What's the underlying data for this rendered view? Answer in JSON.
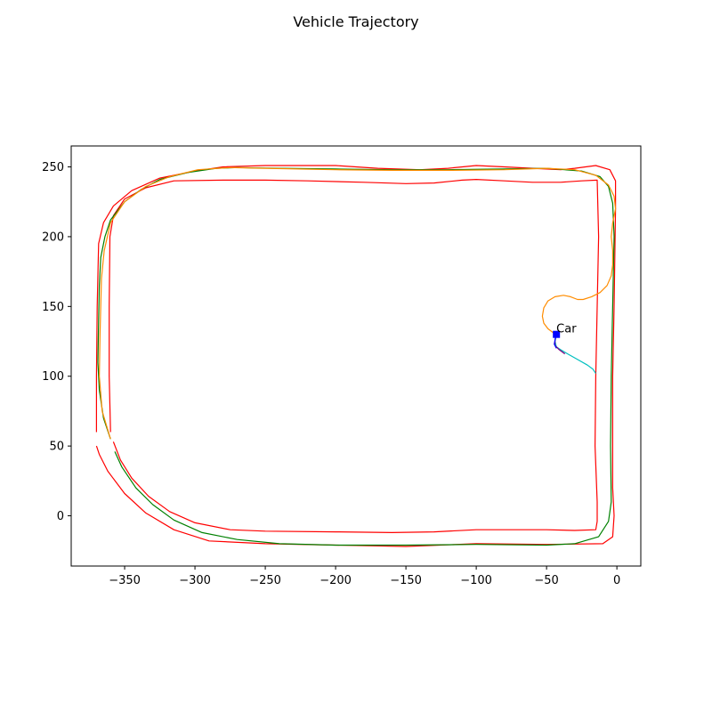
{
  "chart_data": {
    "type": "line",
    "title": "Vehicle Trajectory",
    "xlabel": "",
    "ylabel": "",
    "xlim": [
      -388,
      17
    ],
    "ylim": [
      -36,
      265
    ],
    "x_ticks": [
      -350,
      -300,
      -250,
      -200,
      -150,
      -100,
      -50,
      0
    ],
    "x_tick_labels": [
      "−350",
      "−300",
      "−250",
      "−200",
      "−150",
      "−100",
      "−50",
      "0"
    ],
    "y_ticks": [
      0,
      50,
      100,
      150,
      200,
      250
    ],
    "y_tick_labels": [
      "0",
      "50",
      "100",
      "150",
      "200",
      "250"
    ],
    "grid": false,
    "series": [
      {
        "color": "#ff0000",
        "points": [
          [
            -370,
            60
          ],
          [
            -370,
            100
          ],
          [
            -369.5,
            150
          ],
          [
            -368.5,
            195
          ],
          [
            -365,
            210
          ],
          [
            -358,
            222
          ],
          [
            -345,
            233
          ],
          [
            -325,
            242
          ],
          [
            -300,
            247
          ],
          [
            -280,
            250
          ],
          [
            -250,
            251
          ],
          [
            -200,
            251
          ],
          [
            -170,
            249
          ],
          [
            -140,
            248
          ],
          [
            -120,
            249
          ],
          [
            -100,
            251
          ],
          [
            -80,
            250
          ],
          [
            -60,
            249
          ],
          [
            -40,
            248
          ],
          [
            -30,
            249
          ],
          [
            -15,
            251
          ],
          [
            -5,
            248
          ],
          [
            -1,
            240
          ],
          [
            -1,
            220
          ],
          [
            -2,
            150
          ],
          [
            -3,
            100
          ],
          [
            -3,
            60
          ],
          [
            -3,
            20
          ],
          [
            -2,
            0
          ],
          [
            -3,
            -15
          ],
          [
            -10,
            -20
          ],
          [
            -50,
            -20.5
          ],
          [
            -100,
            -20
          ],
          [
            -150,
            -22
          ],
          [
            -200,
            -21
          ],
          [
            -250,
            -20
          ],
          [
            -290,
            -18
          ],
          [
            -315,
            -10
          ],
          [
            -335,
            2
          ],
          [
            -350,
            16
          ],
          [
            -362,
            32
          ],
          [
            -368,
            44
          ],
          [
            -370,
            50
          ]
        ]
      },
      {
        "color": "#ff0000",
        "points": [
          [
            -360,
            60
          ],
          [
            -361,
            100
          ],
          [
            -361,
            150
          ],
          [
            -360.5,
            200
          ],
          [
            -358,
            215
          ],
          [
            -350,
            227
          ],
          [
            -335,
            235
          ],
          [
            -315,
            240
          ],
          [
            -280,
            240.5
          ],
          [
            -250,
            240.5
          ],
          [
            -220,
            240
          ],
          [
            -180,
            239
          ],
          [
            -150,
            238
          ],
          [
            -130,
            238.5
          ],
          [
            -110,
            240.5
          ],
          [
            -100,
            241
          ],
          [
            -80,
            240
          ],
          [
            -60,
            239
          ],
          [
            -40,
            239
          ],
          [
            -25,
            240
          ],
          [
            -14,
            240.5
          ],
          [
            -13,
            200
          ],
          [
            -14,
            150
          ],
          [
            -15,
            100
          ],
          [
            -15.5,
            50
          ],
          [
            -14,
            10
          ],
          [
            -14,
            -4
          ],
          [
            -15,
            -10
          ],
          [
            -30,
            -10.5
          ],
          [
            -50,
            -10
          ],
          [
            -80,
            -10
          ],
          [
            -100,
            -10
          ],
          [
            -130,
            -11.5
          ],
          [
            -160,
            -12
          ],
          [
            -200,
            -11.5
          ],
          [
            -250,
            -11
          ],
          [
            -275,
            -10
          ],
          [
            -300,
            -5
          ],
          [
            -318,
            3
          ],
          [
            -333,
            14
          ],
          [
            -345,
            27
          ],
          [
            -353,
            40
          ],
          [
            -358,
            53
          ]
        ]
      },
      {
        "color": "#008000",
        "points": [
          [
            -360,
            55
          ],
          [
            -365,
            70
          ],
          [
            -368,
            90
          ],
          [
            -369,
            110
          ],
          [
            -368.5,
            140
          ],
          [
            -368,
            165
          ],
          [
            -367,
            185
          ],
          [
            -364,
            200
          ],
          [
            -360,
            212
          ],
          [
            -350,
            225
          ],
          [
            -338,
            234
          ],
          [
            -325,
            241
          ],
          [
            -305,
            246
          ],
          [
            -285,
            249
          ],
          [
            -270,
            249.5
          ],
          [
            -240,
            249
          ],
          [
            -200,
            248.5
          ],
          [
            -160,
            248
          ],
          [
            -120,
            248
          ],
          [
            -80,
            248.5
          ],
          [
            -50,
            249
          ],
          [
            -25,
            247
          ],
          [
            -12,
            243
          ],
          [
            -6,
            236
          ],
          [
            -3,
            224
          ],
          [
            -2,
            200
          ],
          [
            -3,
            150
          ],
          [
            -4,
            100
          ],
          [
            -4.5,
            50
          ],
          [
            -4,
            10
          ],
          [
            -6,
            -4
          ],
          [
            -13,
            -15
          ],
          [
            -30,
            -20
          ],
          [
            -50,
            -21
          ],
          [
            -100,
            -20.5
          ],
          [
            -150,
            -21
          ],
          [
            -200,
            -21
          ],
          [
            -240,
            -20
          ],
          [
            -270,
            -17
          ],
          [
            -295,
            -12
          ],
          [
            -315,
            -3
          ],
          [
            -330,
            8
          ],
          [
            -342,
            20
          ],
          [
            -352,
            35
          ],
          [
            -357,
            46
          ]
        ]
      },
      {
        "color": "#ff8c00",
        "points": [
          [
            -360,
            55
          ],
          [
            -366,
            75
          ],
          [
            -368,
            100
          ],
          [
            -367.5,
            130
          ],
          [
            -366.5,
            170
          ],
          [
            -364.5,
            190
          ],
          [
            -360,
            210
          ],
          [
            -350,
            225
          ],
          [
            -335,
            236
          ],
          [
            -318,
            243
          ],
          [
            -298,
            248
          ],
          [
            -275,
            249.5
          ],
          [
            -250,
            249
          ],
          [
            -200,
            248
          ],
          [
            -160,
            247.5
          ],
          [
            -120,
            247.5
          ],
          [
            -80,
            248
          ],
          [
            -50,
            249
          ],
          [
            -30,
            248
          ],
          [
            -15,
            244
          ],
          [
            -6,
            237
          ],
          [
            -2,
            229
          ],
          [
            -1,
            220
          ],
          [
            -3,
            210
          ],
          [
            -4,
            200
          ],
          [
            -3,
            190
          ],
          [
            -3,
            180
          ],
          [
            -4,
            172
          ],
          [
            -7,
            165
          ],
          [
            -12,
            160
          ],
          [
            -18,
            157
          ],
          [
            -24,
            155
          ],
          [
            -28,
            155
          ],
          [
            -33,
            157
          ],
          [
            -38,
            158
          ],
          [
            -44,
            157
          ],
          [
            -49,
            154
          ],
          [
            -52,
            149
          ],
          [
            -53,
            143
          ],
          [
            -52,
            138
          ],
          [
            -49,
            134
          ],
          [
            -45,
            131
          ],
          [
            -43,
            130
          ]
        ]
      },
      {
        "color": "#00c0c0",
        "points": [
          [
            -43,
            130
          ],
          [
            -44,
            125
          ],
          [
            -43,
            121
          ],
          [
            -40,
            119
          ],
          [
            -35,
            116
          ],
          [
            -28,
            112
          ],
          [
            -21,
            108
          ],
          [
            -17,
            105
          ],
          [
            -15,
            102
          ]
        ]
      },
      {
        "color": "#800080",
        "points": [
          [
            -43,
            130
          ],
          [
            -44,
            126
          ],
          [
            -44,
            122
          ],
          [
            -41,
            119
          ],
          [
            -37,
            116
          ]
        ]
      },
      {
        "color": "#0000ff",
        "points": [
          [
            -43,
            130
          ],
          [
            -44,
            126
          ],
          [
            -44.5,
            123
          ],
          [
            -43,
            120
          ]
        ]
      }
    ],
    "marker": {
      "label": "Car",
      "x": -43,
      "y": 130,
      "shape": "square",
      "color": "#0000ff"
    }
  }
}
